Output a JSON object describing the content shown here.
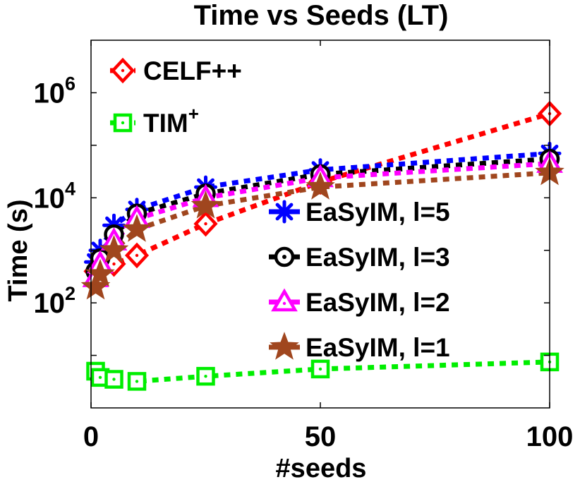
{
  "chart_data": {
    "type": "line",
    "title": "Time vs Seeds (LT)",
    "xlabel": "#seeds",
    "ylabel": "Time (s)",
    "xlim": [
      0,
      100
    ],
    "ylim_log10": [
      0,
      7
    ],
    "yscale": "log",
    "grid": false,
    "x_ticks": [
      "0",
      "50",
      "100"
    ],
    "x_tick_values": [
      0,
      50,
      100
    ],
    "y_ticks": [
      {
        "base": "10",
        "exp": "2",
        "log10": 2
      },
      {
        "base": "10",
        "exp": "4",
        "log10": 4
      },
      {
        "base": "10",
        "exp": "6",
        "log10": 6
      }
    ],
    "legends": {
      "top_left": [
        "CELF++",
        "TIM+"
      ],
      "right": [
        "EaSyIM, l=5",
        "EaSyIM, l=3",
        "EaSyIM, l=2",
        "EaSyIM, l=1"
      ]
    },
    "series": [
      {
        "name": "CELF++",
        "label_main": "CELF++",
        "label_sup": "",
        "color": "#ff0000",
        "marker": "diamond",
        "legend": "top_left",
        "x": [
          1,
          2,
          5,
          10,
          25,
          50,
          100
        ],
        "values": [
          400,
          450,
          550,
          800,
          3200,
          20000,
          400000
        ]
      },
      {
        "name": "TIM+",
        "label_main": "TIM",
        "label_sup": "+",
        "color": "#00ee00",
        "marker": "square",
        "legend": "top_left",
        "x": [
          1,
          2,
          5,
          10,
          25,
          50,
          100
        ],
        "values": [
          5,
          3.8,
          3.5,
          3.2,
          4,
          5.5,
          7.5
        ]
      },
      {
        "name": "EaSyIM, l=5",
        "label_main": "EaSyIM, l=5",
        "label_sup": "",
        "color": "#0000ff",
        "marker": "asterisk",
        "legend": "right",
        "x": [
          1,
          2,
          5,
          10,
          25,
          50,
          100
        ],
        "values": [
          600,
          1000,
          3000,
          6000,
          16000,
          34000,
          70000
        ]
      },
      {
        "name": "EaSyIM, l=3",
        "label_main": "EaSyIM, l=3",
        "label_sup": "",
        "color": "#000000",
        "marker": "circle",
        "legend": "right",
        "x": [
          1,
          2,
          5,
          10,
          25,
          50,
          100
        ],
        "values": [
          400,
          700,
          2000,
          5000,
          12000,
          28000,
          55000
        ]
      },
      {
        "name": "EaSyIM, l=2",
        "label_main": "EaSyIM, l=2",
        "label_sup": "",
        "color": "#ff00ff",
        "marker": "triangle",
        "legend": "right",
        "x": [
          1,
          2,
          5,
          10,
          25,
          50,
          100
        ],
        "values": [
          300,
          550,
          1500,
          4000,
          10000,
          24000,
          45000
        ]
      },
      {
        "name": "EaSyIM, l=1",
        "label_main": "EaSyIM, l=1",
        "label_sup": "",
        "color": "#a0461e",
        "marker": "star",
        "legend": "right",
        "x": [
          1,
          2,
          5,
          10,
          25,
          50,
          100
        ],
        "values": [
          200,
          350,
          1000,
          2500,
          7000,
          16000,
          30000
        ]
      }
    ]
  }
}
